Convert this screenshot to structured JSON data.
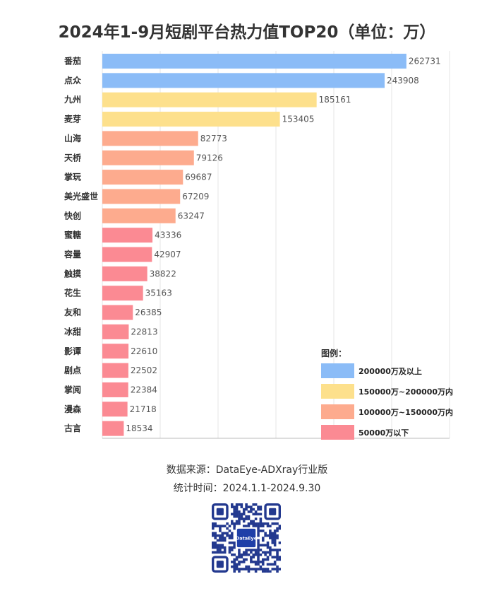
{
  "title": "2024年1-9月短剧平台热力值TOP20（单位：万）",
  "chart_data": {
    "type": "bar",
    "orientation": "horizontal",
    "title": "2024年1-9月短剧平台热力值TOP20（单位：万）",
    "categories": [
      "番茄",
      "点众",
      "九州",
      "麦芽",
      "山海",
      "天桥",
      "掌玩",
      "美光盛世",
      "快创",
      "蜜糖",
      "容量",
      "触摸",
      "花生",
      "友和",
      "冰甜",
      "影谭",
      "剧点",
      "掌阅",
      "漫森",
      "古言"
    ],
    "values": [
      262731,
      243908,
      185161,
      153405,
      82773,
      79126,
      69687,
      67209,
      63247,
      43336,
      42907,
      38822,
      35163,
      26385,
      22813,
      22610,
      22502,
      22384,
      21718,
      18534
    ],
    "xlim": [
      0,
      300000
    ],
    "gridlines": "vertical",
    "legend_position": "bottom-right"
  },
  "legend": {
    "title": "图例：",
    "items": [
      {
        "label": "200000万及以上",
        "color": "#8bbcf7"
      },
      {
        "label": "150000万~200000万内",
        "color": "#fde08c"
      },
      {
        "label": "100000万~150000万内",
        "color": "#fdab8e"
      },
      {
        "label": "50000万以下",
        "color": "#fb8a93"
      }
    ]
  },
  "source": {
    "line1": "数据来源：DataEye-ADXray行业版",
    "line2": "统计时间：2024.1.1-2024.9.30"
  },
  "qr": {
    "center_label": "DataEye",
    "center_color": "#1e3fa8",
    "module_color": "#23398f"
  }
}
